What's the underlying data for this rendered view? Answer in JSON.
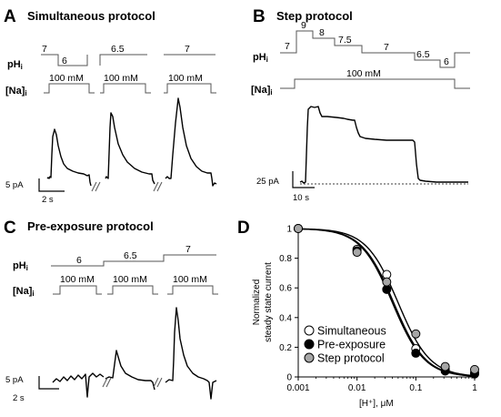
{
  "panels": {
    "A": {
      "letter": "A",
      "title": "Simultaneous protocol",
      "ph_label": "pH",
      "ph_sub": "i",
      "na_label": "[Na]",
      "na_sub": "i",
      "ph_steps": [
        "7",
        "6",
        "6.5",
        "7"
      ],
      "na_conc": [
        "100 mM",
        "100 mM",
        "100 mM"
      ],
      "scale_current": "5 pA",
      "scale_time": "2 s"
    },
    "B": {
      "letter": "B",
      "title": "Step protocol",
      "ph_label": "pH",
      "ph_sub": "i",
      "na_label": "[Na]",
      "na_sub": "i",
      "ph_steps": [
        "7",
        "9",
        "8",
        "7.5",
        "7",
        "6.5",
        "6"
      ],
      "na_conc": "100 mM",
      "scale_current": "25 pA",
      "scale_time": "10 s"
    },
    "C": {
      "letter": "C",
      "title": "Pre-exposure protocol",
      "ph_label": "pH",
      "ph_sub": "i",
      "na_label": "[Na]",
      "na_sub": "i",
      "ph_steps": [
        "6",
        "6.5",
        "7"
      ],
      "na_conc": [
        "100 mM",
        "100 mM",
        "100 mM"
      ],
      "scale_current": "5 pA",
      "scale_time": "2 s"
    },
    "D": {
      "letter": "D"
    }
  },
  "chart_data": {
    "type": "scatter",
    "title": "",
    "xlabel": "[H⁺], μM",
    "ylabel_line1": "Normalized",
    "ylabel_line2": "steady state current",
    "xscale": "log",
    "xlim": [
      0.001,
      1
    ],
    "ylim": [
      0,
      1
    ],
    "xticks": [
      "0.001",
      "0.01",
      "0.1",
      "1"
    ],
    "yticks": [
      "0",
      "0.2",
      "0.4",
      "0.6",
      "0.8",
      "1"
    ],
    "legend_position": "bottom-left",
    "series": [
      {
        "name": "Simultaneous",
        "marker": "open-circle",
        "color": "#ffffff",
        "ic50": 0.042,
        "x": [
          0.001,
          0.01,
          0.032,
          0.1,
          0.316,
          1
        ],
        "y": [
          1.0,
          0.86,
          0.69,
          0.19,
          0.05,
          0.03
        ]
      },
      {
        "name": "Pre-exposure",
        "marker": "filled-circle",
        "color": "#000000",
        "ic50": 0.04,
        "x": [
          0.001,
          0.01,
          0.032,
          0.1,
          0.316,
          1
        ],
        "y": [
          1.0,
          0.85,
          0.59,
          0.16,
          0.04,
          0.02
        ]
      },
      {
        "name": "Step protocol",
        "marker": "gray-circle",
        "color": "#a6a6a6",
        "ic50": 0.05,
        "x": [
          0.001,
          0.01,
          0.032,
          0.1,
          0.316,
          1
        ],
        "y": [
          1.0,
          0.84,
          0.64,
          0.29,
          0.07,
          0.05
        ]
      }
    ]
  }
}
